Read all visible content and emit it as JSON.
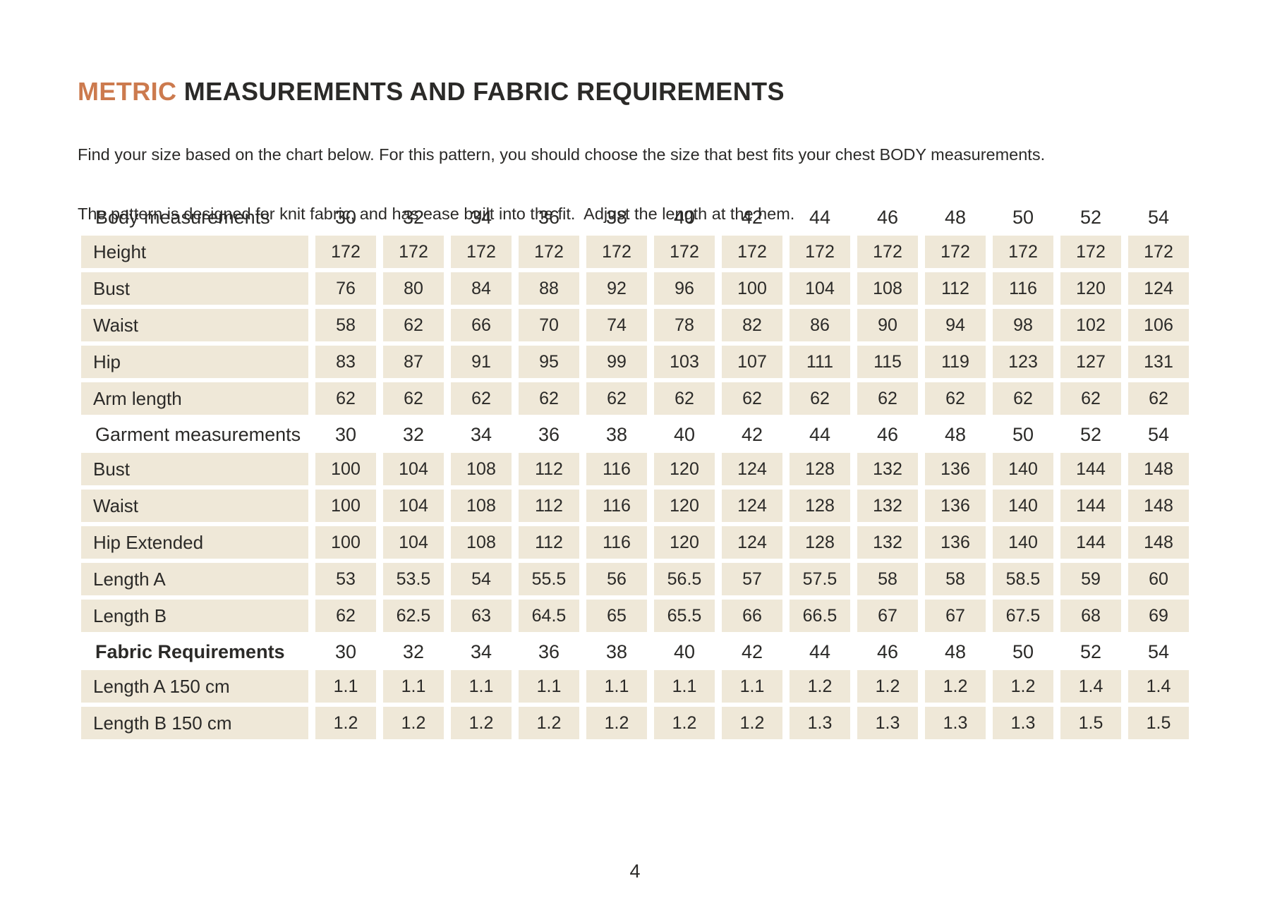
{
  "page": {
    "title_highlight": "METRIC",
    "title_rest": " MEASUREMENTS AND FABRIC REQUIREMENTS",
    "intro_line1": "Find your size based on the chart below. For this pattern, you should choose the size that best fits your chest BODY measurements.",
    "intro_line2": "The pattern is designed for knit fabric, and has ease built into the fit.  Adjust the length at the hem.",
    "page_number": "4"
  },
  "colors": {
    "accent_orange": "#cc7a4e",
    "cell_beige": "#efe8d8",
    "text_dark": "#2b2a28"
  },
  "sizes": [
    "30",
    "32",
    "34",
    "36",
    "38",
    "40",
    "42",
    "44",
    "46",
    "48",
    "50",
    "52",
    "54"
  ],
  "table_sections": [
    {
      "header": "Body measurements",
      "bold": false,
      "rows": [
        {
          "label": "Height",
          "values": [
            "172",
            "172",
            "172",
            "172",
            "172",
            "172",
            "172",
            "172",
            "172",
            "172",
            "172",
            "172",
            "172"
          ]
        },
        {
          "label": "Bust",
          "values": [
            "76",
            "80",
            "84",
            "88",
            "92",
            "96",
            "100",
            "104",
            "108",
            "112",
            "116",
            "120",
            "124"
          ]
        },
        {
          "label": "Waist",
          "values": [
            "58",
            "62",
            "66",
            "70",
            "74",
            "78",
            "82",
            "86",
            "90",
            "94",
            "98",
            "102",
            "106"
          ]
        },
        {
          "label": "Hip",
          "values": [
            "83",
            "87",
            "91",
            "95",
            "99",
            "103",
            "107",
            "111",
            "115",
            "119",
            "123",
            "127",
            "131"
          ]
        },
        {
          "label": "Arm length",
          "values": [
            "62",
            "62",
            "62",
            "62",
            "62",
            "62",
            "62",
            "62",
            "62",
            "62",
            "62",
            "62",
            "62"
          ]
        }
      ]
    },
    {
      "header": "Garment measurements",
      "bold": false,
      "rows": [
        {
          "label": "Bust",
          "values": [
            "100",
            "104",
            "108",
            "112",
            "116",
            "120",
            "124",
            "128",
            "132",
            "136",
            "140",
            "144",
            "148"
          ]
        },
        {
          "label": "Waist",
          "values": [
            "100",
            "104",
            "108",
            "112",
            "116",
            "120",
            "124",
            "128",
            "132",
            "136",
            "140",
            "144",
            "148"
          ]
        },
        {
          "label": "Hip Extended",
          "values": [
            "100",
            "104",
            "108",
            "112",
            "116",
            "120",
            "124",
            "128",
            "132",
            "136",
            "140",
            "144",
            "148"
          ]
        },
        {
          "label": "Length A",
          "values": [
            "53",
            "53.5",
            "54",
            "55.5",
            "56",
            "56.5",
            "57",
            "57.5",
            "58",
            "58",
            "58.5",
            "59",
            "60"
          ]
        },
        {
          "label": "Length B",
          "values": [
            "62",
            "62.5",
            "63",
            "64.5",
            "65",
            "65.5",
            "66",
            "66.5",
            "67",
            "67",
            "67.5",
            "68",
            "69"
          ]
        }
      ]
    },
    {
      "header": "Fabric Requirements",
      "bold": true,
      "rows": [
        {
          "label": "Length A 150 cm",
          "values": [
            "1.1",
            "1.1",
            "1.1",
            "1.1",
            "1.1",
            "1.1",
            "1.1",
            "1.2",
            "1.2",
            "1.2",
            "1.2",
            "1.4",
            "1.4"
          ]
        },
        {
          "label": "Length B 150 cm",
          "values": [
            "1.2",
            "1.2",
            "1.2",
            "1.2",
            "1.2",
            "1.2",
            "1.2",
            "1.3",
            "1.3",
            "1.3",
            "1.3",
            "1.5",
            "1.5"
          ]
        }
      ]
    }
  ]
}
